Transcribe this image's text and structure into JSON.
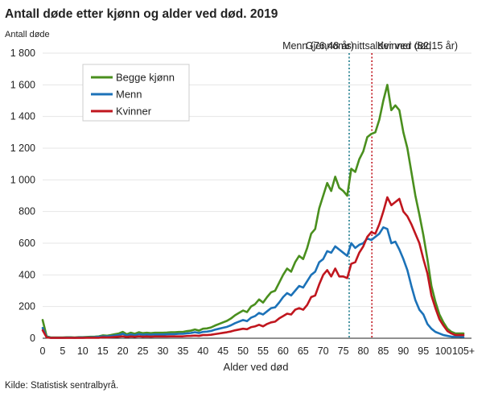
{
  "chart_data": {
    "type": "line",
    "title": "Antall døde etter kjønn og alder ved død. 2019",
    "ylabel": "Antall døde",
    "xlabel": "Alder ved død",
    "source": "Kilde: Statistisk sentralbyrå.",
    "ylim": [
      0,
      1800
    ],
    "yticks": [
      0,
      200,
      400,
      600,
      800,
      1000,
      1200,
      1400,
      1600,
      1800
    ],
    "ytick_labels": [
      "0",
      "200",
      "400",
      "600",
      "800",
      "1 000",
      "1 200",
      "1 400",
      "1 600",
      "1 800"
    ],
    "xlim": [
      0,
      107
    ],
    "xticks": [
      0,
      5,
      10,
      15,
      20,
      25,
      30,
      35,
      40,
      45,
      50,
      55,
      60,
      65,
      70,
      75,
      80,
      85,
      90,
      95,
      100,
      105
    ],
    "xtick_labels": [
      "0",
      "5",
      "10",
      "15",
      "20",
      "25",
      "30",
      "35",
      "40",
      "45",
      "50",
      "55",
      "60",
      "65",
      "70",
      "75",
      "80",
      "85",
      "90",
      "95",
      "100",
      "105+"
    ],
    "grid": true,
    "legend_position": "top-left",
    "annotation": {
      "heading": "Gjennomsnittsalder ved død",
      "men_label": "Menn (76,48 år)",
      "women_label": "Kvinner (82,15 år)",
      "men_x": 76.48,
      "women_x": 82.15
    },
    "series": [
      {
        "name": "Begge kjønn",
        "color": "#4a8f1e",
        "values": [
          115,
          12,
          5,
          5,
          5,
          5,
          6,
          6,
          5,
          7,
          7,
          8,
          9,
          10,
          12,
          18,
          16,
          20,
          25,
          30,
          40,
          25,
          35,
          28,
          38,
          32,
          35,
          32,
          35,
          35,
          35,
          36,
          38,
          38,
          40,
          40,
          45,
          48,
          55,
          48,
          60,
          62,
          68,
          80,
          90,
          100,
          110,
          125,
          145,
          160,
          175,
          165,
          200,
          215,
          245,
          225,
          260,
          290,
          300,
          350,
          400,
          440,
          420,
          480,
          520,
          500,
          570,
          660,
          690,
          820,
          900,
          980,
          930,
          1020,
          950,
          930,
          900,
          1070,
          1050,
          1130,
          1180,
          1270,
          1290,
          1300,
          1380,
          1500,
          1600,
          1440,
          1470,
          1440,
          1300,
          1200,
          1050,
          900,
          780,
          650,
          500,
          330,
          230,
          150,
          100,
          60,
          40,
          30,
          30,
          30
        ]
      },
      {
        "name": "Menn",
        "color": "#1c72b8",
        "values": [
          65,
          8,
          3,
          3,
          3,
          3,
          4,
          4,
          3,
          5,
          5,
          5,
          6,
          7,
          9,
          12,
          11,
          14,
          17,
          20,
          28,
          17,
          24,
          19,
          26,
          22,
          24,
          22,
          24,
          24,
          24,
          25,
          26,
          26,
          28,
          28,
          31,
          33,
          38,
          33,
          40,
          42,
          46,
          54,
          60,
          66,
          72,
          82,
          95,
          105,
          115,
          108,
          130,
          140,
          160,
          150,
          170,
          190,
          195,
          225,
          260,
          285,
          270,
          300,
          330,
          320,
          360,
          400,
          420,
          480,
          500,
          550,
          540,
          580,
          560,
          540,
          520,
          600,
          570,
          590,
          600,
          630,
          620,
          640,
          660,
          700,
          690,
          600,
          610,
          560,
          500,
          430,
          330,
          240,
          180,
          150,
          90,
          60,
          40,
          30,
          20,
          15,
          10,
          10,
          10,
          8
        ]
      },
      {
        "name": "Kvinner",
        "color": "#c0161e",
        "values": [
          50,
          5,
          2,
          2,
          2,
          2,
          2,
          2,
          2,
          2,
          2,
          3,
          3,
          3,
          3,
          6,
          5,
          6,
          8,
          10,
          12,
          8,
          11,
          9,
          12,
          10,
          11,
          10,
          11,
          11,
          11,
          11,
          12,
          12,
          12,
          12,
          14,
          15,
          17,
          15,
          20,
          20,
          22,
          26,
          30,
          34,
          38,
          43,
          50,
          55,
          60,
          57,
          70,
          75,
          85,
          75,
          90,
          100,
          105,
          125,
          140,
          155,
          150,
          180,
          190,
          180,
          210,
          260,
          270,
          340,
          400,
          430,
          390,
          440,
          390,
          390,
          380,
          470,
          480,
          540,
          580,
          640,
          670,
          660,
          720,
          800,
          890,
          840,
          860,
          880,
          800,
          770,
          720,
          660,
          600,
          500,
          410,
          270,
          190,
          120,
          80,
          45,
          30,
          20,
          20,
          20
        ]
      }
    ]
  }
}
